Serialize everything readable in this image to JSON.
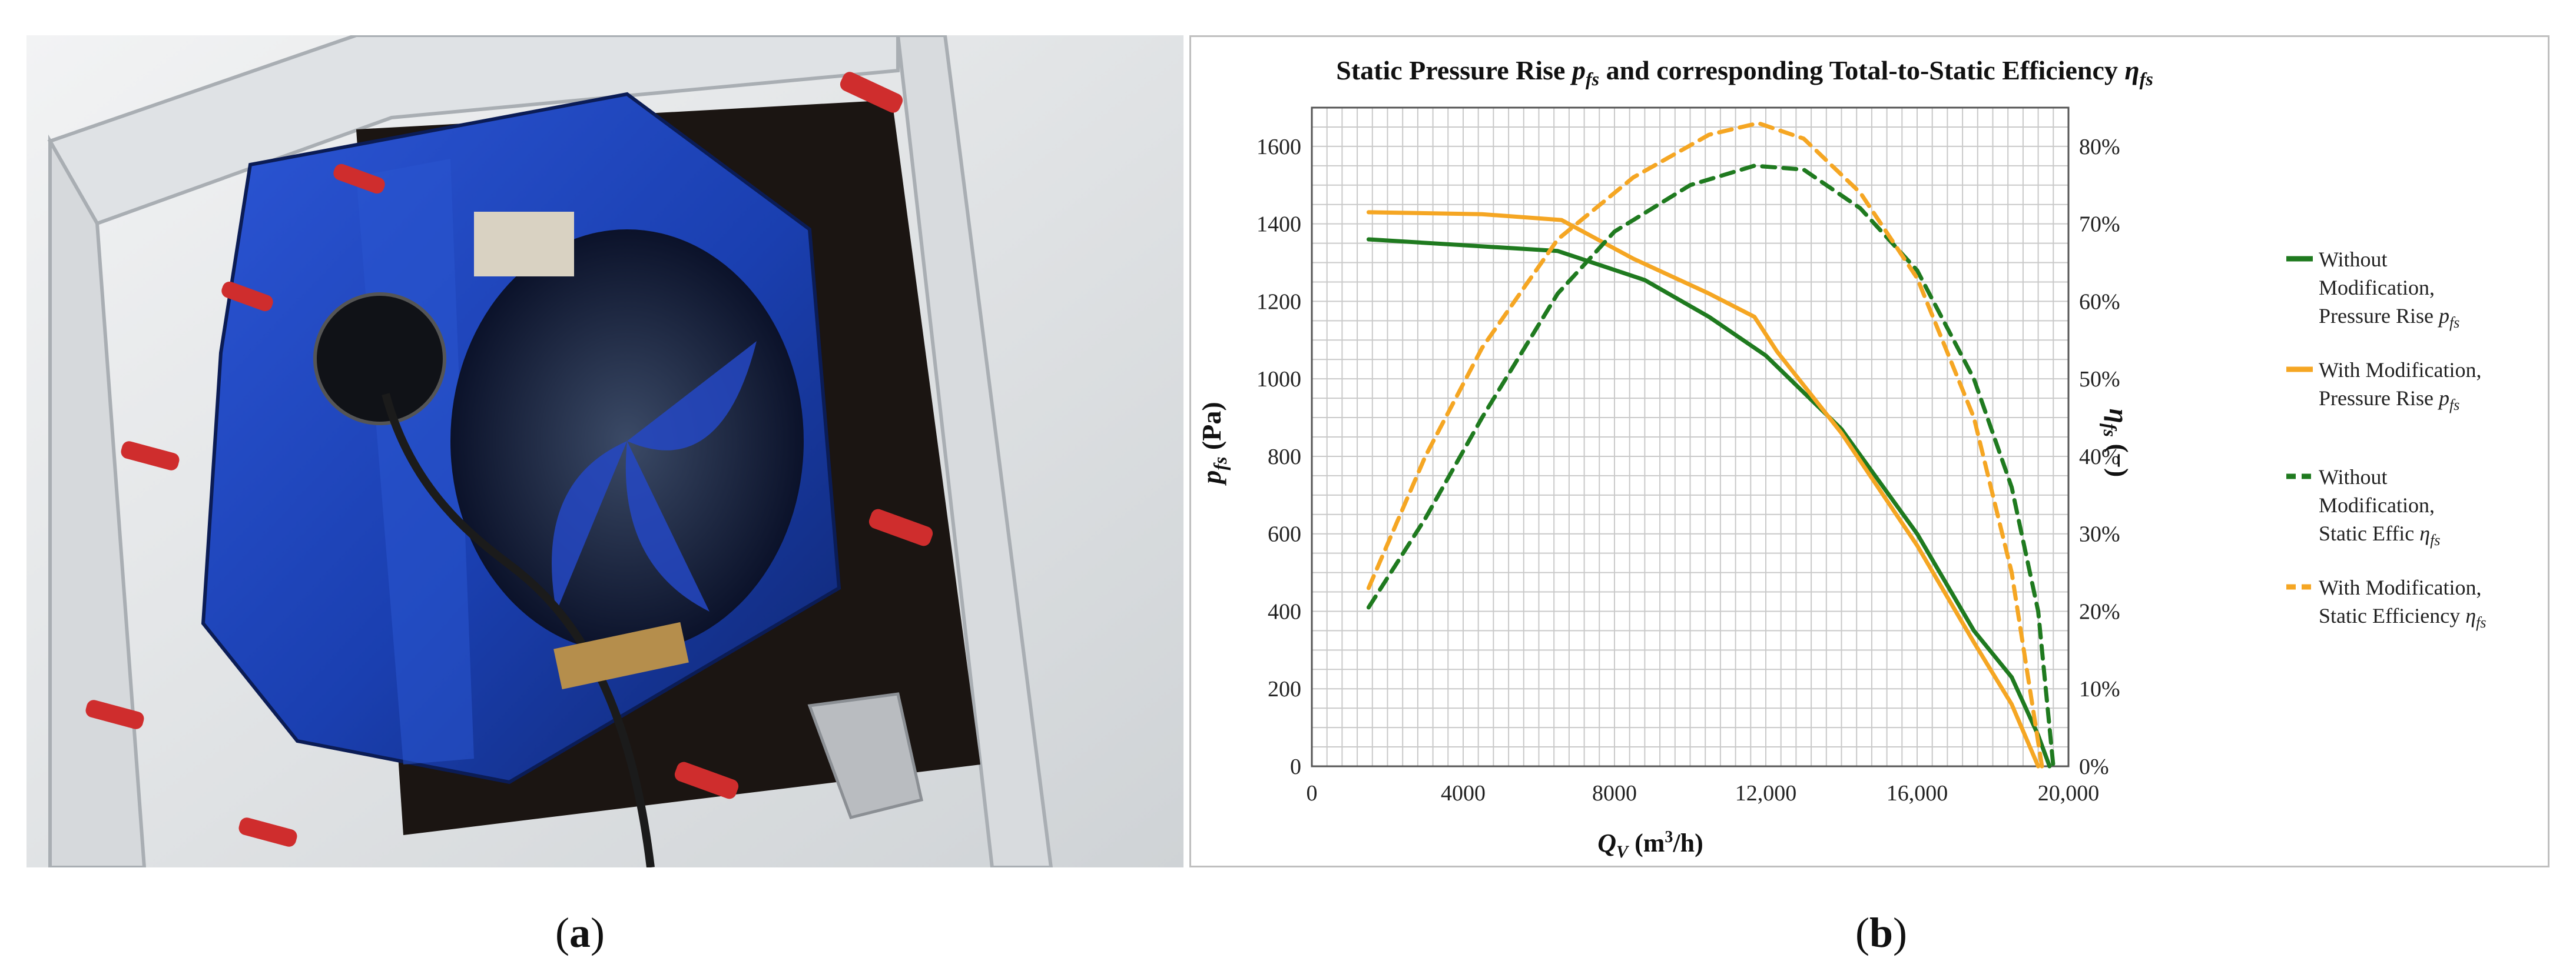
{
  "captions": {
    "a_open": "(",
    "a_letter": "a",
    "a_close": ")",
    "b_open": "(",
    "b_letter": "b",
    "b_close": ")"
  },
  "colors": {
    "without": "#1f7a1f",
    "with": "#f5a623",
    "fan_blue": "#1a3fb0"
  },
  "chart_data": {
    "type": "line",
    "title": "Static Pressure Rise",
    "title_sym": "p",
    "title_sub": "fs",
    "title_mid": " and corresponding Total-to-Static Efficiency ",
    "title_sym2": "η",
    "title_sub2": "fs",
    "xlabel_sym": "Q",
    "xlabel_sub": "V",
    "xlabel_unit_pre": " (m",
    "xlabel_unit_sup": "3",
    "xlabel_unit_post": "/h)",
    "ylabel_sym": "p",
    "ylabel_sub": "fs",
    "ylabel_unit": " (Pa)",
    "y2label_sym": "η",
    "y2label_sub": "fs",
    "y2label_unit": " (−)",
    "xlim": [
      0,
      20000
    ],
    "ylim": [
      0,
      1700
    ],
    "y2lim": [
      0,
      85
    ],
    "grid": true,
    "legend_position": "right",
    "x_ticks": [
      {
        "v": 0,
        "label": "0"
      },
      {
        "v": 4000,
        "label": "4000"
      },
      {
        "v": 8000,
        "label": "8000"
      },
      {
        "v": 12000,
        "label": "12,000"
      },
      {
        "v": 16000,
        "label": "16,000"
      },
      {
        "v": 20000,
        "label": "20,000"
      }
    ],
    "y_ticks": [
      {
        "v": 0,
        "label": "0"
      },
      {
        "v": 200,
        "label": "200"
      },
      {
        "v": 400,
        "label": "400"
      },
      {
        "v": 600,
        "label": "600"
      },
      {
        "v": 800,
        "label": "800"
      },
      {
        "v": 1000,
        "label": "1000"
      },
      {
        "v": 1200,
        "label": "1200"
      },
      {
        "v": 1400,
        "label": "1400"
      },
      {
        "v": 1600,
        "label": "1600"
      }
    ],
    "y2_ticks": [
      {
        "v": 0,
        "label": "0%"
      },
      {
        "v": 10,
        "label": "10%"
      },
      {
        "v": 20,
        "label": "20%"
      },
      {
        "v": 30,
        "label": "30%"
      },
      {
        "v": 40,
        "label": "40%"
      },
      {
        "v": 50,
        "label": "50%"
      },
      {
        "v": 60,
        "label": "60%"
      },
      {
        "v": 70,
        "label": "70%"
      },
      {
        "v": 80,
        "label": "80%"
      }
    ],
    "series": [
      {
        "axis": "left",
        "dash": false,
        "color": "#1f7a1f",
        "name_l1": "Without",
        "name_l2": "Modification,",
        "name_l3": "Pressure Rise ",
        "name_sym": "p",
        "name_sub": "fs",
        "x": [
          1500,
          4000,
          6500,
          8800,
          10500,
          12000,
          14000,
          16000,
          17500,
          18500,
          19200,
          19500
        ],
        "y": [
          1360,
          1345,
          1330,
          1255,
          1160,
          1060,
          870,
          600,
          350,
          230,
          80,
          0
        ]
      },
      {
        "axis": "left",
        "dash": false,
        "color": "#f5a623",
        "name_l1": "With Modification,",
        "name_l2": "Pressure Rise ",
        "name_l3": "",
        "name_sym": "p",
        "name_sub": "fs",
        "x": [
          1500,
          4500,
          6600,
          8500,
          10500,
          11700,
          12300,
          14000,
          16000,
          17500,
          18500,
          19200
        ],
        "y": [
          1430,
          1425,
          1410,
          1310,
          1220,
          1160,
          1070,
          860,
          570,
          320,
          160,
          0
        ]
      },
      {
        "axis": "right",
        "dash": true,
        "color": "#1f7a1f",
        "name_l1": "Without",
        "name_l2": "Modification,",
        "name_l3": "Static Effic ",
        "name_sym": "η",
        "name_sub": "fs",
        "x": [
          1500,
          3000,
          4500,
          6500,
          8000,
          10000,
          11700,
          13000,
          14500,
          16000,
          17500,
          18500,
          19200,
          19600
        ],
        "y": [
          20.5,
          32,
          45,
          61,
          69,
          75,
          77.5,
          77,
          72,
          64,
          50,
          36,
          20,
          0
        ]
      },
      {
        "axis": "right",
        "dash": true,
        "color": "#f5a623",
        "name_l1": "With Modification,",
        "name_l2": "Static Efficiency ",
        "name_l3": "",
        "name_sym": "η",
        "name_sub": "fs",
        "x": [
          1500,
          3000,
          4500,
          6500,
          8500,
          10500,
          11800,
          13000,
          14500,
          16000,
          17500,
          18500,
          19300
        ],
        "y": [
          23,
          40,
          54,
          68,
          76,
          81.5,
          83,
          81,
          74,
          63,
          45,
          25,
          0
        ]
      }
    ]
  }
}
